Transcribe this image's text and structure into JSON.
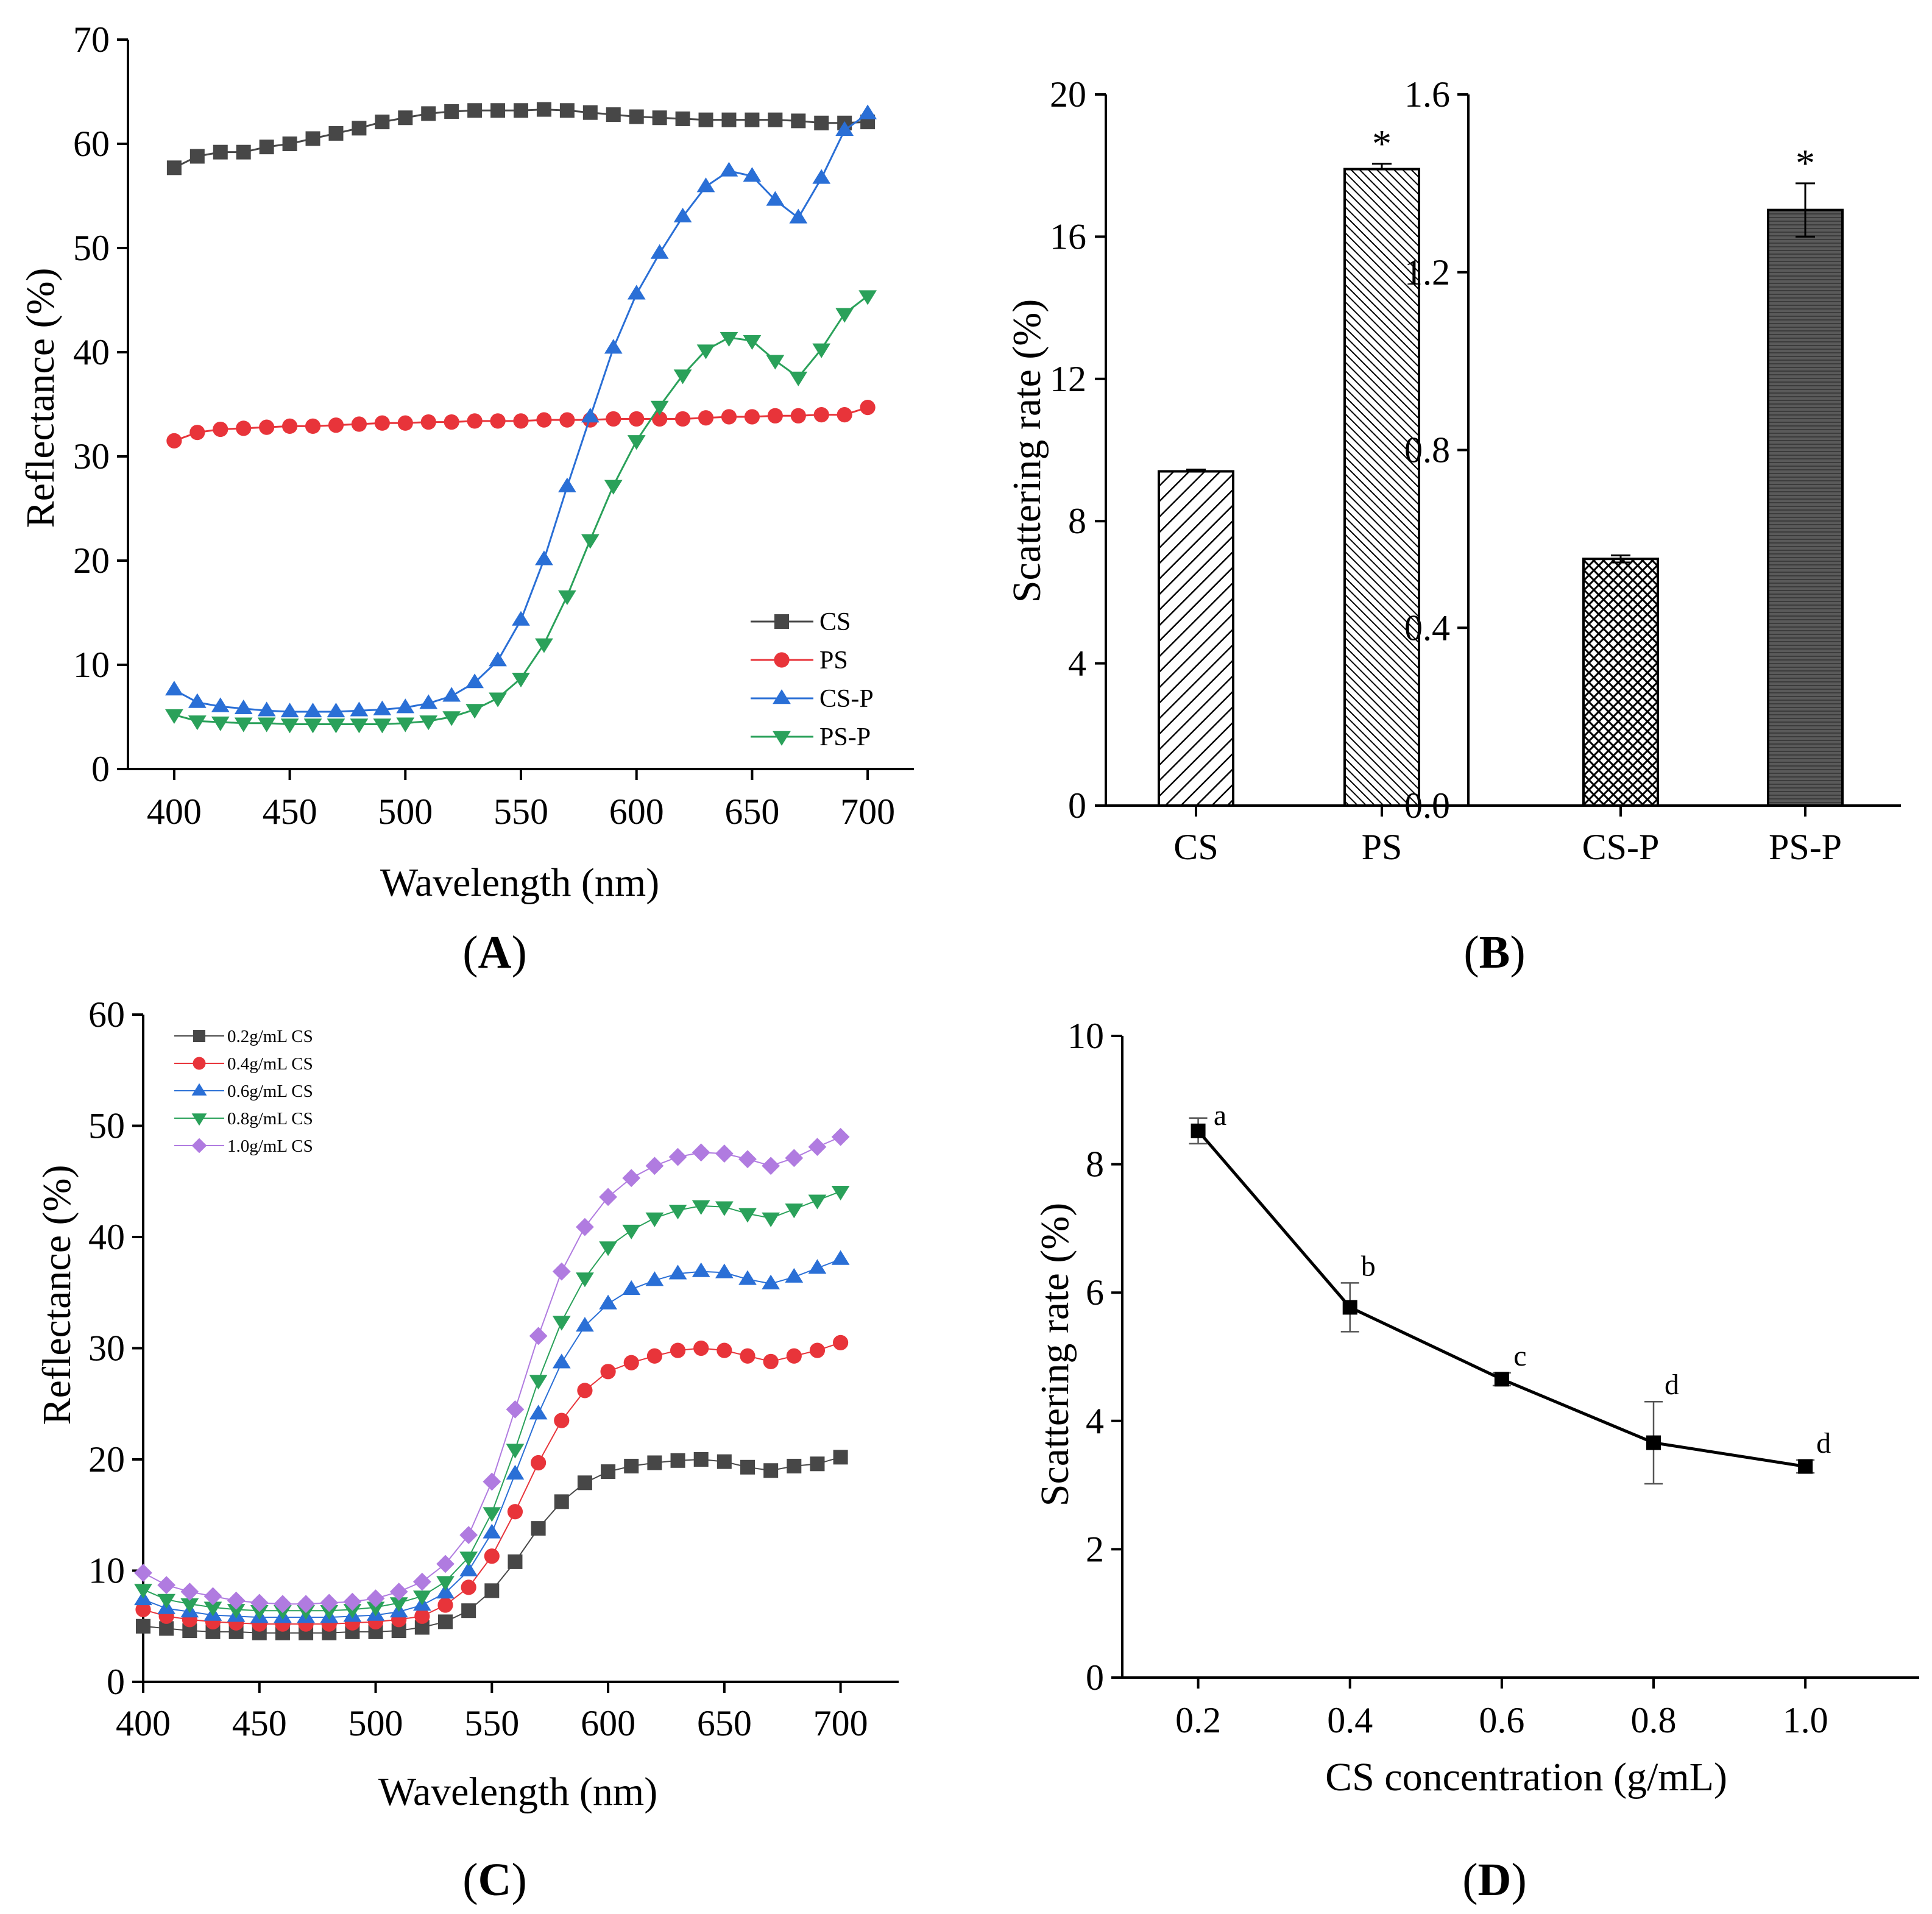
{
  "chart_data": [
    {
      "id": "A",
      "type": "line",
      "panel_label": "A",
      "xlabel": "Wavelength (nm)",
      "ylabel": "Reflectance (%)",
      "xlim": [
        380,
        720
      ],
      "ylim": [
        0,
        70
      ],
      "xticks": [
        400,
        450,
        500,
        550,
        600,
        650,
        700
      ],
      "yticks": [
        0,
        10,
        20,
        30,
        40,
        50,
        60,
        70
      ],
      "x": [
        400,
        410,
        420,
        430,
        440,
        450,
        460,
        470,
        480,
        490,
        500,
        510,
        520,
        530,
        540,
        550,
        560,
        570,
        580,
        590,
        600,
        610,
        620,
        630,
        640,
        650,
        660,
        670,
        680,
        690,
        700
      ],
      "series": [
        {
          "name": "CS",
          "color": "#474747",
          "marker": "square",
          "values": [
            57.7,
            58.8,
            59.2,
            59.2,
            59.7,
            60.0,
            60.5,
            61.0,
            61.5,
            62.1,
            62.5,
            62.9,
            63.1,
            63.2,
            63.2,
            63.2,
            63.3,
            63.2,
            63.0,
            62.8,
            62.6,
            62.5,
            62.4,
            62.3,
            62.3,
            62.3,
            62.3,
            62.2,
            62.0,
            62.0,
            62.1
          ]
        },
        {
          "name": "PS",
          "color": "#e8343a",
          "marker": "circle",
          "values": [
            31.5,
            32.3,
            32.6,
            32.7,
            32.8,
            32.9,
            32.9,
            33.0,
            33.1,
            33.2,
            33.2,
            33.3,
            33.3,
            33.4,
            33.4,
            33.4,
            33.5,
            33.5,
            33.5,
            33.6,
            33.6,
            33.6,
            33.6,
            33.7,
            33.8,
            33.8,
            33.9,
            33.9,
            34.0,
            34.0,
            34.7
          ]
        },
        {
          "name": "CS-P",
          "color": "#2a6fd6",
          "marker": "triangle-up",
          "values": [
            7.6,
            6.4,
            6.0,
            5.8,
            5.6,
            5.5,
            5.5,
            5.5,
            5.6,
            5.7,
            5.9,
            6.3,
            7.0,
            8.3,
            10.4,
            14.3,
            20.1,
            27.1,
            33.8,
            40.4,
            45.6,
            49.5,
            53.0,
            55.9,
            57.4,
            56.9,
            54.6,
            52.9,
            56.7,
            61.3,
            62.9
          ]
        },
        {
          "name": "PS-P",
          "color": "#2aa15a",
          "marker": "triangle-down",
          "values": [
            5.2,
            4.6,
            4.5,
            4.4,
            4.4,
            4.3,
            4.3,
            4.3,
            4.3,
            4.3,
            4.4,
            4.6,
            5.0,
            5.7,
            6.8,
            8.7,
            12.0,
            16.6,
            22.0,
            27.2,
            31.5,
            34.8,
            37.8,
            40.2,
            41.4,
            41.1,
            39.2,
            37.6,
            40.3,
            43.7,
            45.4
          ]
        }
      ]
    },
    {
      "id": "B-left",
      "type": "bar",
      "panel_label": "B",
      "ylabel": "Scattering rate (%)",
      "ylim": [
        0,
        20
      ],
      "yticks": [
        0,
        4,
        8,
        12,
        16,
        20
      ],
      "categories": [
        "CS",
        "PS"
      ],
      "values": [
        9.4,
        17.9
      ],
      "errors": [
        0.05,
        0.15
      ],
      "significance": [
        "",
        "*"
      ],
      "patterns": [
        "hatch-wide",
        "hatch-dense"
      ]
    },
    {
      "id": "B-right",
      "type": "bar",
      "ylim": [
        0,
        1.6
      ],
      "yticks": [
        "0.0",
        "0.4",
        "0.8",
        "1.2",
        "1.6"
      ],
      "categories": [
        "CS-P",
        "PS-P"
      ],
      "values": [
        0.555,
        1.34
      ],
      "errors": [
        0.008,
        0.06
      ],
      "significance": [
        "",
        "*"
      ],
      "patterns": [
        "crosshatch",
        "dark"
      ]
    },
    {
      "id": "C",
      "type": "line",
      "panel_label": "C",
      "xlabel": "Wavelength (nm)",
      "ylabel": "Reflectance (%)",
      "xlim": [
        400,
        725
      ],
      "ylim": [
        0,
        60
      ],
      "xticks": [
        400,
        450,
        500,
        550,
        600,
        650,
        700
      ],
      "yticks": [
        0,
        10,
        20,
        30,
        40,
        50,
        60
      ],
      "x": [
        400,
        410,
        420,
        430,
        440,
        450,
        460,
        470,
        480,
        490,
        500,
        510,
        520,
        530,
        540,
        550,
        560,
        570,
        580,
        590,
        600,
        610,
        620,
        630,
        640,
        650,
        660,
        670,
        680,
        690,
        700
      ],
      "series": [
        {
          "name": "0.2g/mL CS",
          "color": "#474747",
          "marker": "square",
          "values": [
            5.0,
            4.8,
            4.6,
            4.5,
            4.5,
            4.4,
            4.4,
            4.4,
            4.4,
            4.5,
            4.5,
            4.6,
            4.9,
            5.4,
            6.4,
            8.2,
            10.8,
            13.8,
            16.2,
            17.9,
            18.9,
            19.4,
            19.7,
            19.9,
            20.0,
            19.8,
            19.3,
            19.0,
            19.4,
            19.6,
            20.2
          ]
        },
        {
          "name": "0.4g/mL CS",
          "color": "#e8343a",
          "marker": "circle",
          "values": [
            6.5,
            5.9,
            5.6,
            5.4,
            5.3,
            5.2,
            5.2,
            5.2,
            5.2,
            5.3,
            5.4,
            5.6,
            5.9,
            6.9,
            8.5,
            11.3,
            15.3,
            19.7,
            23.5,
            26.2,
            27.9,
            28.7,
            29.3,
            29.8,
            30.0,
            29.8,
            29.3,
            28.8,
            29.3,
            29.8,
            30.5
          ]
        },
        {
          "name": "0.6g/mL CS",
          "color": "#2a6fd6",
          "marker": "triangle-up",
          "values": [
            7.4,
            6.6,
            6.3,
            6.0,
            5.9,
            5.8,
            5.8,
            5.8,
            5.8,
            5.9,
            6.0,
            6.3,
            6.9,
            8.0,
            10.0,
            13.4,
            18.7,
            24.1,
            28.7,
            32.0,
            34.0,
            35.3,
            36.1,
            36.7,
            36.9,
            36.8,
            36.2,
            35.8,
            36.4,
            37.2,
            38.0
          ]
        },
        {
          "name": "0.8g/mL CS",
          "color": "#2aa15a",
          "marker": "triangle-down",
          "values": [
            8.3,
            7.4,
            7.0,
            6.7,
            6.5,
            6.4,
            6.4,
            6.4,
            6.4,
            6.5,
            6.7,
            7.1,
            7.7,
            9.0,
            11.2,
            15.2,
            20.9,
            27.1,
            32.4,
            36.3,
            39.1,
            40.6,
            41.7,
            42.4,
            42.8,
            42.7,
            42.1,
            41.7,
            42.5,
            43.3,
            44.1
          ]
        },
        {
          "name": "1.0g/mL CS",
          "color": "#b07be0",
          "marker": "diamond",
          "values": [
            9.8,
            8.7,
            8.1,
            7.7,
            7.3,
            7.1,
            7.0,
            7.0,
            7.1,
            7.2,
            7.5,
            8.1,
            9.0,
            10.6,
            13.2,
            18.0,
            24.5,
            31.1,
            36.9,
            40.9,
            43.6,
            45.3,
            46.4,
            47.2,
            47.6,
            47.5,
            47.0,
            46.4,
            47.1,
            48.1,
            49.0
          ]
        }
      ]
    },
    {
      "id": "D",
      "type": "line",
      "panel_label": "D",
      "xlabel": "CS concentration (g/mL)",
      "ylabel": "Scattering rate (%)",
      "xlim": [
        0.1,
        1.15
      ],
      "ylim": [
        0,
        10
      ],
      "xticks": [
        "0.2",
        "0.4",
        "0.6",
        "0.8",
        "1.0"
      ],
      "yticks": [
        0,
        2,
        4,
        6,
        8,
        10
      ],
      "x": [
        0.2,
        0.4,
        0.6,
        0.8,
        1.0
      ],
      "values": [
        8.52,
        5.77,
        4.65,
        3.66,
        3.29
      ],
      "errors": [
        0.2,
        0.38,
        0.1,
        0.64,
        0.1
      ],
      "letters": [
        "a",
        "b",
        "c",
        "d",
        "d"
      ],
      "color": "#000000",
      "marker": "square"
    }
  ]
}
